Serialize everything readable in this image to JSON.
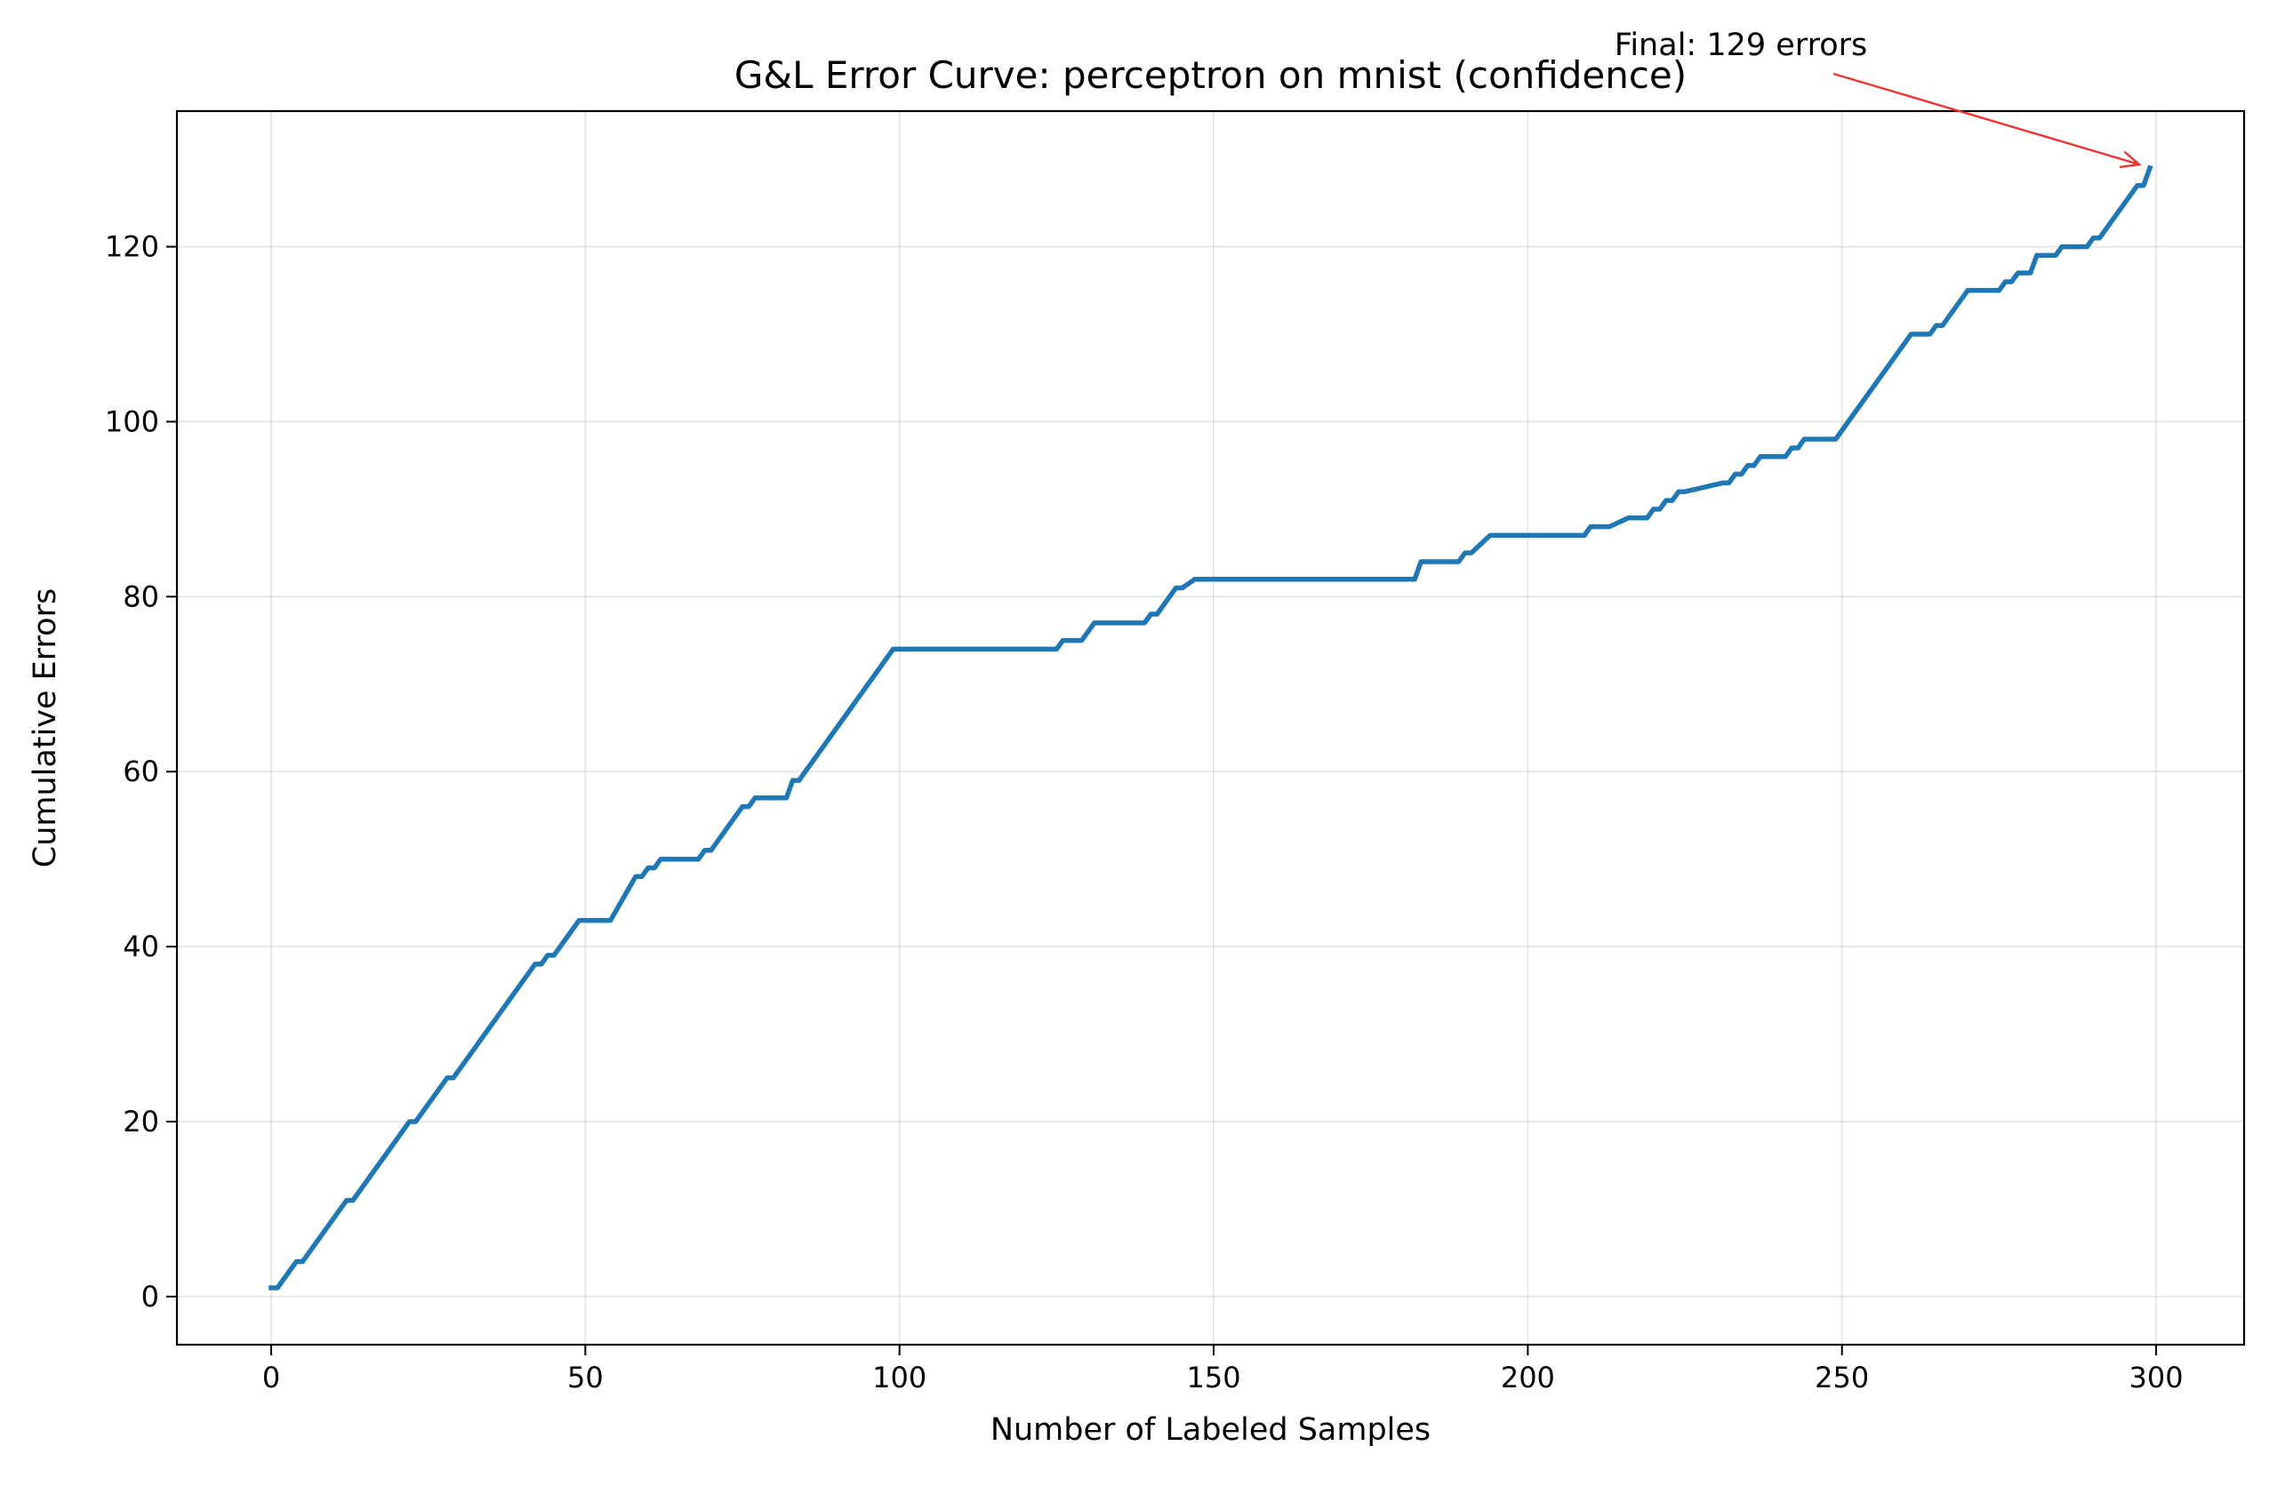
{
  "chart_data": {
    "type": "line",
    "title": "G&L Error Curve: perceptron on mnist (confidence)",
    "xlabel": "Number of Labeled Samples",
    "ylabel": "Cumulative Errors",
    "xlim": [
      -15,
      314
    ],
    "ylim": [
      -5.5,
      135.5
    ],
    "xticks": [
      0,
      50,
      100,
      150,
      200,
      250,
      300
    ],
    "yticks": [
      0,
      20,
      40,
      60,
      80,
      100,
      120
    ],
    "grid": true,
    "colors": {
      "line": "#1f77b4",
      "annotation_arrow": "#ee3333",
      "grid": "#b0b0b0"
    },
    "annotation": {
      "text": "Final: 129 errors",
      "xy": [
        299,
        129
      ]
    },
    "series": [
      {
        "x": [
          0,
          1,
          4,
          5,
          12,
          13,
          22,
          23,
          28,
          29,
          42,
          43,
          44,
          45,
          49,
          50,
          53,
          54,
          58,
          59,
          60,
          61,
          62,
          63,
          67,
          68,
          69,
          70,
          75,
          76,
          77,
          78,
          81,
          82,
          83,
          84,
          99,
          100,
          125,
          126,
          128,
          129,
          131,
          132,
          138,
          139,
          140,
          141,
          144,
          145,
          147,
          148,
          181,
          182,
          183,
          184,
          188,
          189,
          190,
          191,
          194,
          195,
          208,
          209,
          210,
          211,
          212,
          213,
          216,
          217,
          218,
          219,
          220,
          221,
          222,
          223,
          224,
          225,
          231,
          232,
          233,
          234,
          235,
          236,
          237,
          238,
          240,
          241,
          242,
          243,
          244,
          245,
          249,
          261,
          262,
          264,
          265,
          266,
          270,
          271,
          275,
          276,
          277,
          278,
          279,
          280,
          281,
          282,
          283,
          284,
          285,
          286,
          288,
          289,
          290,
          291,
          297,
          298,
          299
        ],
        "y": [
          1,
          1,
          4,
          4,
          11,
          11,
          20,
          20,
          25,
          25,
          38,
          38,
          39,
          39,
          43,
          43,
          43,
          43,
          48,
          48,
          49,
          49,
          50,
          50,
          50,
          50,
          51,
          51,
          56,
          56,
          57,
          57,
          57,
          57,
          59,
          59,
          74,
          74,
          74,
          75,
          75,
          75,
          77,
          77,
          77,
          77,
          78,
          78,
          81,
          81,
          82,
          82,
          82,
          82,
          84,
          84,
          84,
          84,
          85,
          85,
          87,
          87,
          87,
          87,
          88,
          88,
          88,
          88,
          89,
          89,
          89,
          89,
          90,
          90,
          91,
          91,
          92,
          92,
          93,
          93,
          94,
          94,
          95,
          95,
          96,
          96,
          96,
          96,
          97,
          97,
          98,
          98,
          98,
          110,
          110,
          110,
          111,
          111,
          115,
          115,
          115,
          116,
          116,
          117,
          117,
          117,
          119,
          119,
          119,
          119,
          120,
          120,
          120,
          120,
          121,
          121,
          127,
          127,
          129
        ]
      }
    ]
  }
}
